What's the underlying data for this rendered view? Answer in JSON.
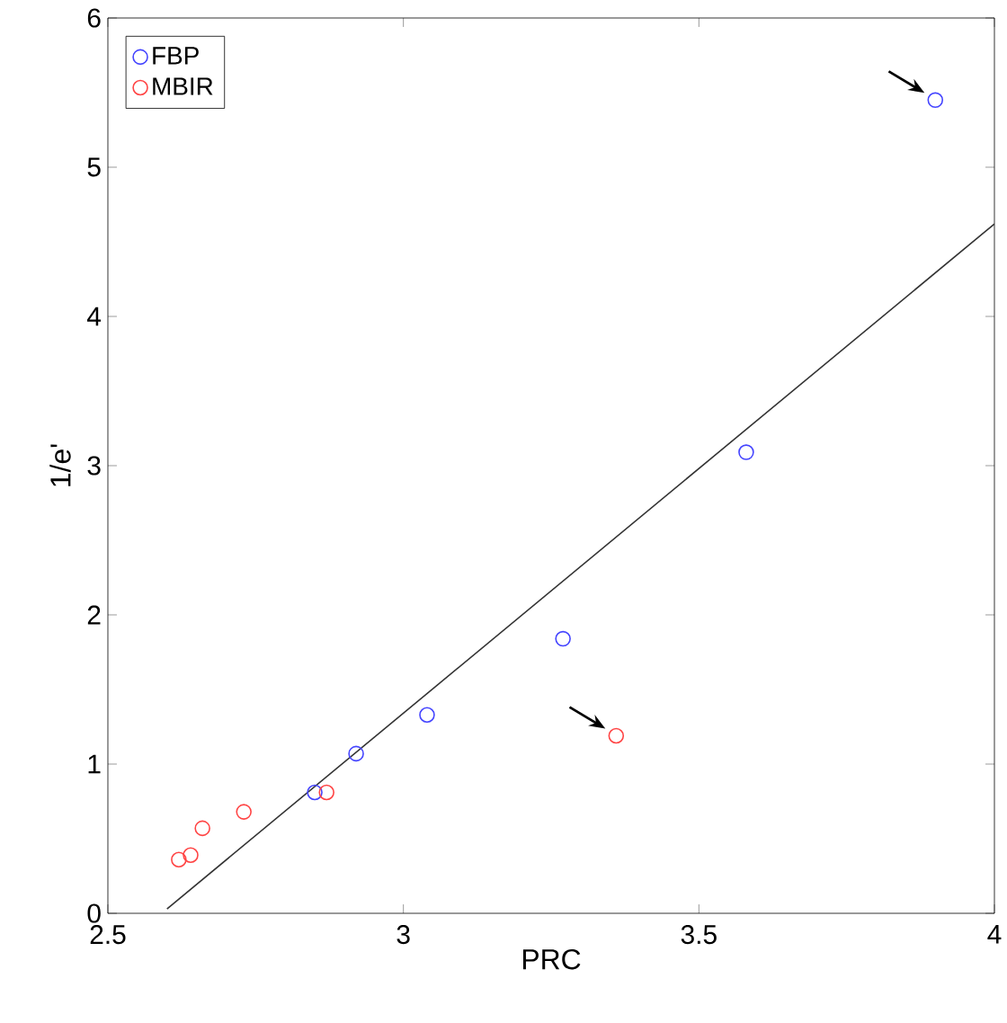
{
  "chart_data": {
    "type": "scatter",
    "xlabel": "PRC",
    "ylabel": "1/e'",
    "xlim": [
      2.5,
      4
    ],
    "ylim": [
      0,
      6
    ],
    "xticks": [
      2.5,
      3,
      3.5,
      4
    ],
    "yticks": [
      0,
      1,
      2,
      3,
      4,
      5,
      6
    ],
    "grid": false,
    "legend": "top left",
    "marker": "circle",
    "series": [
      {
        "name": "FBP",
        "color": "#4444ff",
        "x": [
          2.85,
          2.92,
          3.04,
          3.27,
          3.58,
          3.9
        ],
        "values": [
          0.81,
          1.07,
          1.33,
          1.84,
          3.09,
          5.45
        ]
      },
      {
        "name": "MBIR",
        "color": "#ff4444",
        "x": [
          2.62,
          2.64,
          2.66,
          2.73,
          2.87,
          3.36
        ],
        "values": [
          0.36,
          0.39,
          0.57,
          0.68,
          0.81,
          1.19
        ]
      },
      {
        "type": "line",
        "marker": "none",
        "color": "#333333",
        "x": [
          2.6,
          4
        ],
        "values": [
          0.03,
          4.62
        ]
      }
    ]
  }
}
